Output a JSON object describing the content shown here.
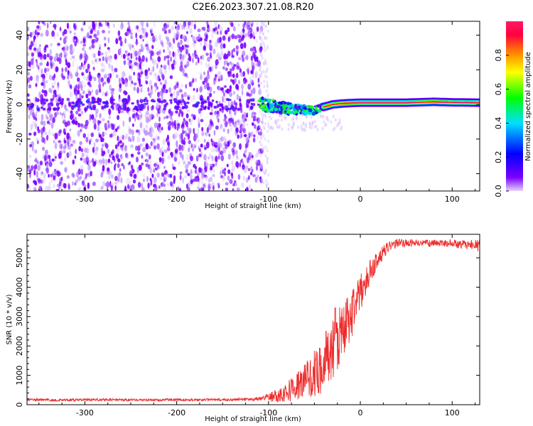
{
  "figure": {
    "title": "C2E6.2023.307.21.08.R20"
  },
  "chart_data": [
    {
      "type": "heatmap",
      "xlabel": "Height of straight line (km)",
      "ylabel": "Frequency (Hz)",
      "xlim": [
        -363,
        130
      ],
      "ylim": [
        -50,
        48
      ],
      "x_ticks": [
        -300,
        -200,
        -100,
        0,
        100
      ],
      "y_ticks": [
        -40,
        -20,
        0,
        20,
        40
      ],
      "grid": false,
      "colorbar": {
        "label": "Normalized spectral amplitude",
        "range": [
          0.0,
          1.0
        ],
        "ticks": [
          0.0,
          0.2,
          0.4,
          0.6,
          0.8
        ],
        "colormap": "rainbow (violet to red)",
        "colors": [
          "#e6d4ff",
          "#7a00ff",
          "#0000ff",
          "#00e0ff",
          "#00ff00",
          "#ffff00",
          "#ff7f00",
          "#ff0040",
          "#ff1a66"
        ]
      },
      "regions": {
        "broadband_noise": {
          "x_range": [
            -363,
            -110
          ],
          "y_range": [
            -50,
            48
          ],
          "amplitude": 0.08
        },
        "transition_noise": {
          "x_range": [
            -110,
            -30
          ],
          "y_range": [
            -8,
            6
          ],
          "amplitude": 0.35
        },
        "carrier_line": {
          "x_range": [
            -30,
            130
          ],
          "y_center": 1.0,
          "amplitude": 0.9
        }
      },
      "carrier_track": {
        "x": [
          -110,
          -90,
          -70,
          -50,
          -40,
          -30,
          -20,
          -10,
          0,
          50,
          80,
          100,
          130
        ],
        "y": [
          0.5,
          -1.5,
          -3.0,
          -3.5,
          -1.5,
          0.0,
          0.5,
          0.8,
          1.0,
          1.0,
          1.5,
          1.2,
          1.0
        ]
      }
    },
    {
      "type": "line",
      "xlabel": "Height of straight line (km)",
      "ylabel": "SNR (10 * v/v)",
      "xlim": [
        -363,
        130
      ],
      "ylim": [
        0,
        5800
      ],
      "x_ticks": [
        -300,
        -200,
        -100,
        0,
        100
      ],
      "y_ticks": [
        0,
        1000,
        2000,
        3000,
        4000,
        5000
      ],
      "grid": false,
      "series": [
        {
          "color": "#ee2b2b",
          "x": [
            -363,
            -330,
            -300,
            -270,
            -240,
            -210,
            -180,
            -150,
            -120,
            -110,
            -100,
            -90,
            -80,
            -70,
            -60,
            -50,
            -40,
            -35,
            -30,
            -25,
            -20,
            -15,
            -10,
            -5,
            0,
            5,
            10,
            20,
            30,
            40,
            60,
            80,
            100,
            110,
            120,
            130
          ],
          "y": [
            150,
            140,
            150,
            150,
            140,
            150,
            150,
            150,
            160,
            180,
            250,
            330,
            450,
            620,
            800,
            1050,
            1400,
            1700,
            2000,
            2250,
            2500,
            2750,
            3100,
            3450,
            3800,
            4100,
            4500,
            5000,
            5350,
            5500,
            5500,
            5500,
            5500,
            5450,
            5450,
            5400
          ],
          "noise_amplitude": [
            60,
            60,
            60,
            60,
            60,
            60,
            60,
            60,
            70,
            90,
            150,
            250,
            350,
            500,
            650,
            800,
            1000,
            1100,
            1200,
            1200,
            1100,
            1000,
            900,
            800,
            650,
            500,
            400,
            300,
            200,
            150,
            120,
            120,
            130,
            150,
            170,
            200
          ]
        }
      ]
    }
  ]
}
